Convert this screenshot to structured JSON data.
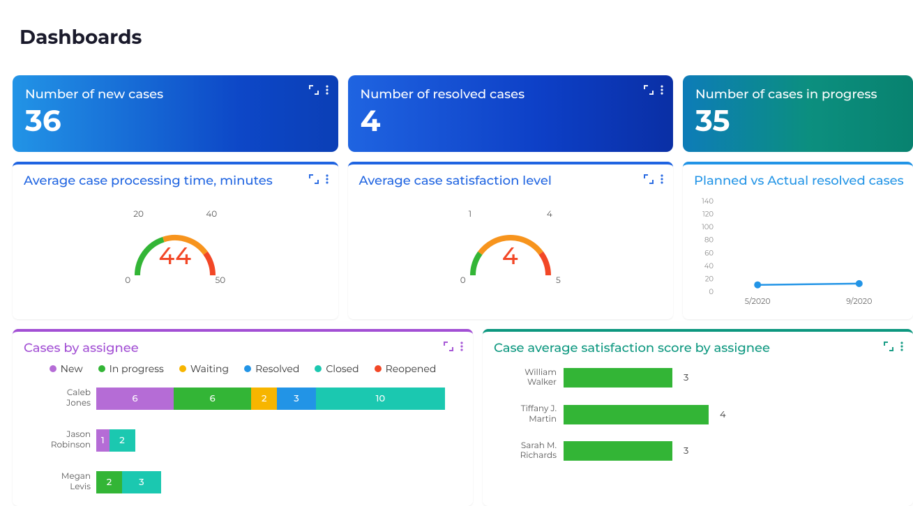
{
  "page": {
    "title": "Dashboards"
  },
  "metrics": {
    "new_cases": {
      "title": "Number of new cases",
      "value": "36",
      "gradient": "blue"
    },
    "resolved_cases": {
      "title": "Number of resolved cases",
      "value": "4",
      "gradient": "royal"
    },
    "in_progress": {
      "title": "Number of cases in progress",
      "value": "35",
      "gradient": "teal"
    }
  },
  "gauges": {
    "processing_time": {
      "title": "Average case processing time, minutes",
      "value": "44",
      "min": "0",
      "max": "50",
      "lo": "20",
      "hi": "40",
      "arc": {
        "green": "#33b536",
        "orange": "#f7941d",
        "red": "#f24726"
      }
    },
    "satisfaction": {
      "title": "Average case satisfaction level",
      "value": "4",
      "min": "0",
      "max": "5",
      "lo": "1",
      "hi": "4",
      "arc": {
        "green": "#33b536",
        "orange": "#f7941d",
        "red": "#f24726"
      }
    }
  },
  "planned_vs_actual": {
    "title": "Planned vs Actual resolved cases",
    "type": "line",
    "y_ticks": [
      "140",
      "120",
      "100",
      "80",
      "60",
      "40",
      "20",
      "0"
    ],
    "x_ticks": [
      "5/2020",
      "9/2020"
    ],
    "series_color": "#2294e6",
    "marker_radius": 5,
    "points": [
      {
        "x": 0.22,
        "y": 10
      },
      {
        "x": 0.78,
        "y": 12
      }
    ],
    "y_max": 140
  },
  "cases_by_assignee": {
    "title": "Cases by assignee",
    "type": "stacked-bar-horizontal",
    "legend": [
      {
        "label": "New",
        "color": "#b56cd6"
      },
      {
        "label": "In progress",
        "color": "#33b536"
      },
      {
        "label": "Waiting",
        "color": "#f7b500"
      },
      {
        "label": "Resolved",
        "color": "#2294e6"
      },
      {
        "label": "Closed",
        "color": "#1bc8b0"
      },
      {
        "label": "Reopened",
        "color": "#f24726"
      }
    ],
    "scale_max": 27,
    "rows": [
      {
        "name": "Caleb Jones",
        "segments": [
          {
            "idx": 0,
            "value": 6
          },
          {
            "idx": 1,
            "value": 6
          },
          {
            "idx": 2,
            "value": 2
          },
          {
            "idx": 3,
            "value": 3
          },
          {
            "idx": 4,
            "value": 10
          }
        ]
      },
      {
        "name": "Jason Robinson",
        "segments": [
          {
            "idx": 0,
            "value": 1
          },
          {
            "idx": 4,
            "value": 2
          }
        ]
      },
      {
        "name": "Megan Levis",
        "segments": [
          {
            "idx": 1,
            "value": 2
          },
          {
            "idx": 4,
            "value": 3
          }
        ]
      }
    ]
  },
  "satisfaction_by_assignee": {
    "title": "Case average satisfaction score by assignee",
    "type": "bar-horizontal",
    "bar_color": "#33b536",
    "scale_max": 5,
    "rows": [
      {
        "name": "William Walker",
        "value": 3
      },
      {
        "name": "Tiffany J. Martin",
        "value": 4
      },
      {
        "name": "Sarah M. Richards",
        "value": 3
      }
    ]
  },
  "icons": {
    "expand": "expand-icon",
    "more": "more-icon"
  }
}
